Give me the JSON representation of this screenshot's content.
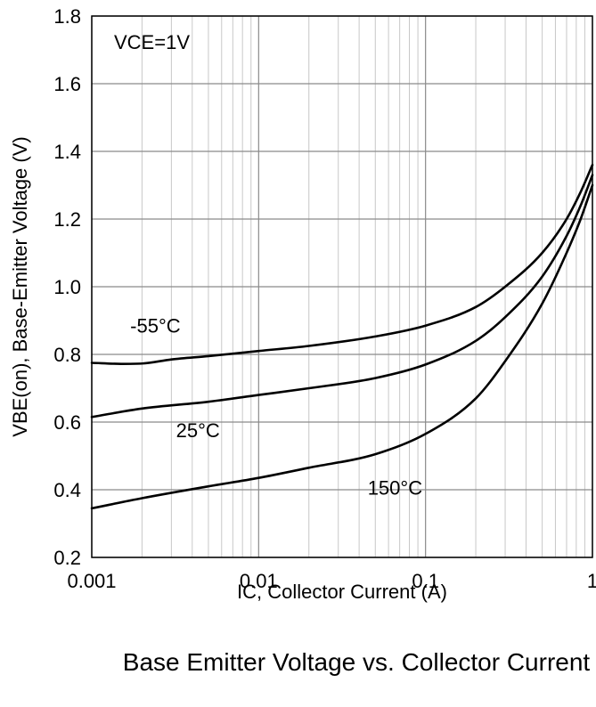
{
  "caption": "Base Emitter Voltage vs. Collector Current",
  "chart_data": {
    "type": "line",
    "title": "Base Emitter Voltage vs. Collector Current",
    "xlabel": "IC, Collector Current (A)",
    "ylabel": "VBE(on), Base-Emitter Voltage (V)",
    "xscale": "log",
    "xlim": [
      0.001,
      1
    ],
    "ylim": [
      0.2,
      1.8
    ],
    "xticks": [
      0.001,
      0.01,
      0.1,
      1
    ],
    "xtick_labels": [
      "0.001",
      "0.01",
      "0.1",
      "1"
    ],
    "yticks": [
      0.2,
      0.4,
      0.6,
      0.8,
      1.0,
      1.2,
      1.4,
      1.6,
      1.8
    ],
    "ytick_labels": [
      "0.2",
      "0.4",
      "0.6",
      "0.8",
      "1.0",
      "1.2",
      "1.4",
      "1.6",
      "1.8"
    ],
    "grid": true,
    "annotation": "VCE=1V",
    "series": [
      {
        "name": "-55°C",
        "x": [
          0.001,
          0.0015,
          0.002,
          0.003,
          0.005,
          0.01,
          0.02,
          0.05,
          0.1,
          0.2,
          0.3,
          0.5,
          0.7,
          0.85,
          1.0
        ],
        "y": [
          0.775,
          0.772,
          0.773,
          0.785,
          0.795,
          0.81,
          0.825,
          0.853,
          0.885,
          0.94,
          1.0,
          1.1,
          1.2,
          1.28,
          1.36
        ]
      },
      {
        "name": "25°C",
        "x": [
          0.001,
          0.002,
          0.005,
          0.01,
          0.02,
          0.05,
          0.1,
          0.2,
          0.3,
          0.5,
          0.7,
          0.85,
          1.0
        ],
        "y": [
          0.615,
          0.64,
          0.66,
          0.68,
          0.7,
          0.73,
          0.77,
          0.84,
          0.91,
          1.03,
          1.15,
          1.24,
          1.33
        ]
      },
      {
        "name": "150°C",
        "x": [
          0.001,
          0.002,
          0.005,
          0.01,
          0.02,
          0.05,
          0.1,
          0.2,
          0.3,
          0.5,
          0.7,
          0.85,
          1.0
        ],
        "y": [
          0.345,
          0.375,
          0.41,
          0.435,
          0.465,
          0.505,
          0.565,
          0.67,
          0.78,
          0.95,
          1.1,
          1.2,
          1.3
        ]
      }
    ],
    "series_labels": [
      {
        "text": "-55°C",
        "x": 0.0017,
        "y": 0.865
      },
      {
        "text": "25°C",
        "x": 0.0032,
        "y": 0.555
      },
      {
        "text": "150°C",
        "x": 0.045,
        "y": 0.385
      }
    ]
  }
}
